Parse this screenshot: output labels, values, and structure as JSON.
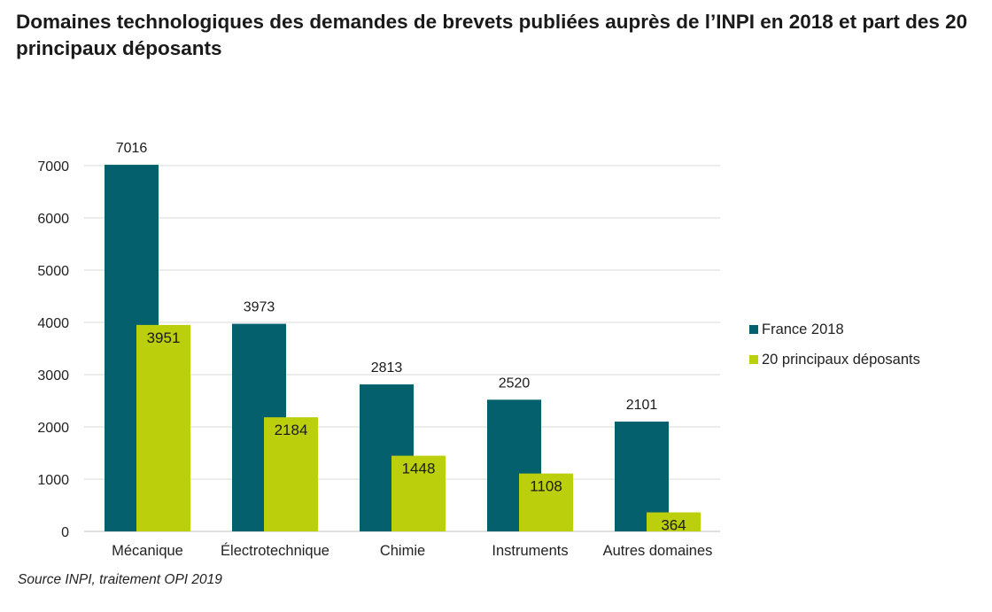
{
  "title": "Domaines technologiques des demandes de brevets publiées auprès de l’INPI en 2018 et part des 20 principaux déposants",
  "source": "Source INPI, traitement OPI 2019",
  "colors": {
    "france": "#05606d",
    "top20": "#bccf0c",
    "grid": "#d9d9d9",
    "axis": "#bfbfbf"
  },
  "chart_data": {
    "type": "bar",
    "categories": [
      "Mécanique",
      "Électrotechnique",
      "Chimie",
      "Instruments",
      "Autres domaines"
    ],
    "series": [
      {
        "name": "France 2018",
        "values": [
          7016,
          3973,
          2813,
          2520,
          2101
        ]
      },
      {
        "name": "20 principaux déposants",
        "values": [
          3951,
          2184,
          1448,
          1108,
          364
        ]
      }
    ],
    "ylim": [
      0,
      7000
    ],
    "yticks": [
      0,
      1000,
      2000,
      3000,
      4000,
      5000,
      6000,
      7000
    ],
    "grid": true,
    "legend": "right",
    "data_labels": true
  }
}
